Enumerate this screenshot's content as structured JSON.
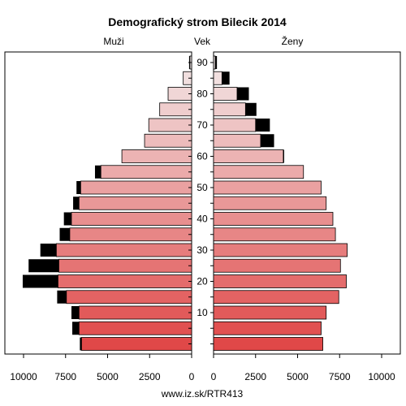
{
  "chart_data": {
    "type": "bar",
    "title": "Demografický strom Bilecik 2014",
    "labels": {
      "left": "Muži",
      "center": "Vek",
      "right": "Ženy"
    },
    "footer": "www.iz.sk/RTR413",
    "age_ticks": [
      10,
      20,
      30,
      40,
      50,
      60,
      70,
      80,
      90
    ],
    "x_ticks_left": [
      "10000",
      "7500",
      "5000",
      "2500",
      "0"
    ],
    "x_ticks_right": [
      "0",
      "2500",
      "5000",
      "7500",
      "10000"
    ],
    "xlim": [
      0,
      10000
    ],
    "age_groups": [
      "0-4",
      "5-9",
      "10-14",
      "15-19",
      "20-24",
      "25-29",
      "30-34",
      "35-39",
      "40-44",
      "45-49",
      "50-54",
      "55-59",
      "60-64",
      "65-69",
      "70-74",
      "75-79",
      "80-84",
      "85-89",
      "90+"
    ],
    "series": [
      {
        "name": "Muži",
        "values": [
          6550,
          6700,
          6700,
          7450,
          7950,
          7900,
          8050,
          7250,
          7150,
          6700,
          6600,
          5400,
          4150,
          2800,
          2550,
          1900,
          1400,
          500,
          100
        ],
        "black": [
          100,
          400,
          450,
          550,
          2100,
          1800,
          950,
          600,
          450,
          350,
          250,
          350,
          0,
          0,
          0,
          0,
          0,
          0,
          50
        ]
      },
      {
        "name": "Ženy",
        "values": [
          6500,
          6400,
          6700,
          7450,
          7900,
          7550,
          7950,
          7250,
          7100,
          6700,
          6400,
          5350,
          4150,
          2800,
          2500,
          1900,
          1400,
          500,
          100
        ],
        "black": [
          0,
          0,
          0,
          0,
          0,
          0,
          0,
          0,
          0,
          0,
          0,
          0,
          50,
          800,
          850,
          650,
          700,
          450,
          100
        ]
      }
    ],
    "colors": {
      "bar_young": "#e04848",
      "bar_old": "#f2e8e8",
      "excess": "#000000"
    }
  }
}
